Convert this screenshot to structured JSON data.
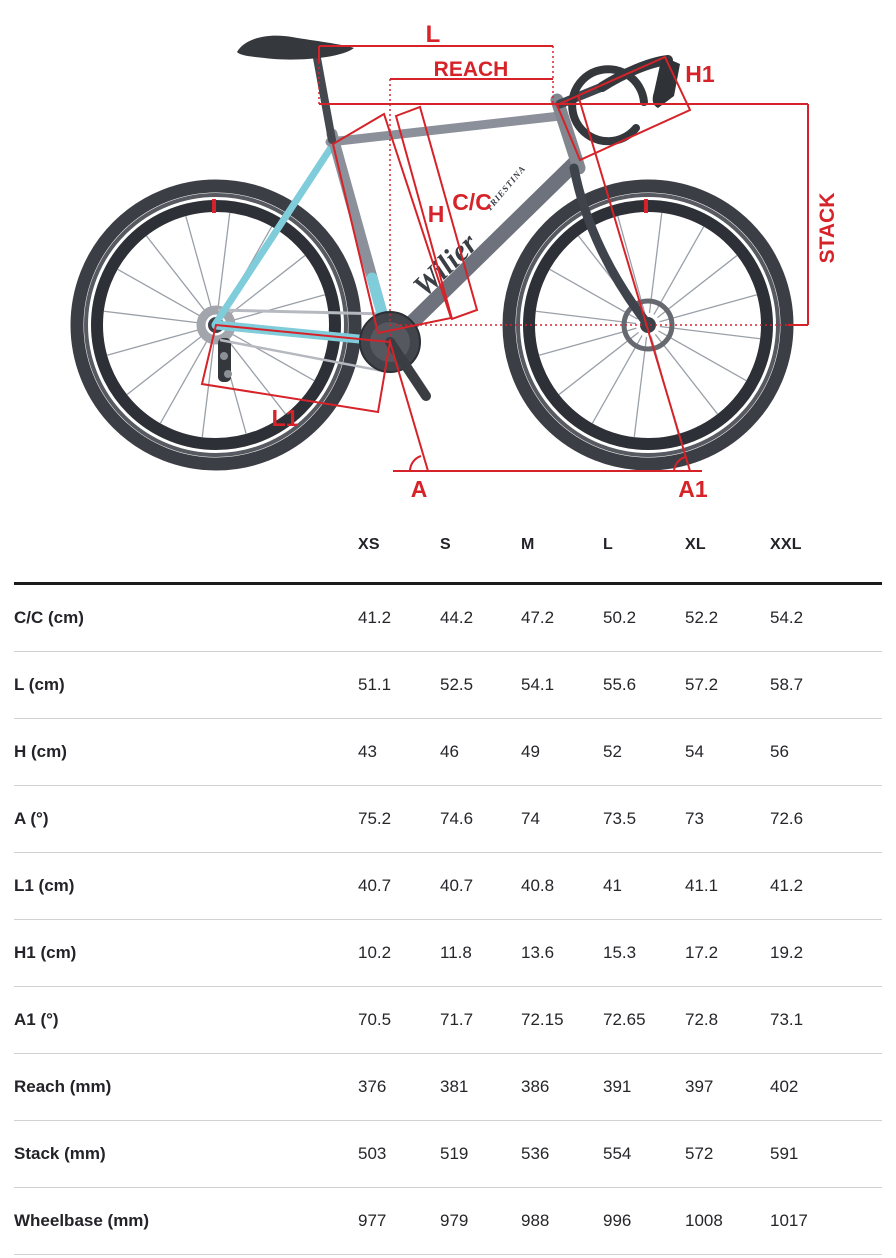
{
  "diagram": {
    "labels": {
      "l": "L",
      "reach": "REACH",
      "h1": "H1",
      "h": "H",
      "cc": "C/C",
      "stack": "STACK",
      "l1": "L1",
      "a": "A",
      "a1": "A1"
    },
    "brand": {
      "logo": "Wilier",
      "sub": "TRIESTINA"
    },
    "colors": {
      "annotation_red": "#d6232a",
      "frame_grey": "#8b909a",
      "frame_dark": "#3f434b",
      "accent_blue": "#7fccdb"
    }
  },
  "table": {
    "columns": [
      "XS",
      "S",
      "M",
      "L",
      "XL",
      "XXL"
    ],
    "rows": [
      {
        "label": "C/C (cm)",
        "values": [
          "41.2",
          "44.2",
          "47.2",
          "50.2",
          "52.2",
          "54.2"
        ]
      },
      {
        "label": "L (cm)",
        "values": [
          "51.1",
          "52.5",
          "54.1",
          "55.6",
          "57.2",
          "58.7"
        ]
      },
      {
        "label": "H (cm)",
        "values": [
          "43",
          "46",
          "49",
          "52",
          "54",
          "56"
        ]
      },
      {
        "label": "A (°)",
        "values": [
          "75.2",
          "74.6",
          "74",
          "73.5",
          "73",
          "72.6"
        ]
      },
      {
        "label": "L1 (cm)",
        "values": [
          "40.7",
          "40.7",
          "40.8",
          "41",
          "41.1",
          "41.2"
        ]
      },
      {
        "label": "H1 (cm)",
        "values": [
          "10.2",
          "11.8",
          "13.6",
          "15.3",
          "17.2",
          "19.2"
        ]
      },
      {
        "label": "A1 (°)",
        "values": [
          "70.5",
          "71.7",
          "72.15",
          "72.65",
          "72.8",
          "73.1"
        ]
      },
      {
        "label": "Reach (mm)",
        "values": [
          "376",
          "381",
          "386",
          "391",
          "397",
          "402"
        ]
      },
      {
        "label": "Stack (mm)",
        "values": [
          "503",
          "519",
          "536",
          "554",
          "572",
          "591"
        ]
      },
      {
        "label": "Wheelbase (mm)",
        "values": [
          "977",
          "979",
          "988",
          "996",
          "1008",
          "1017"
        ]
      }
    ]
  }
}
